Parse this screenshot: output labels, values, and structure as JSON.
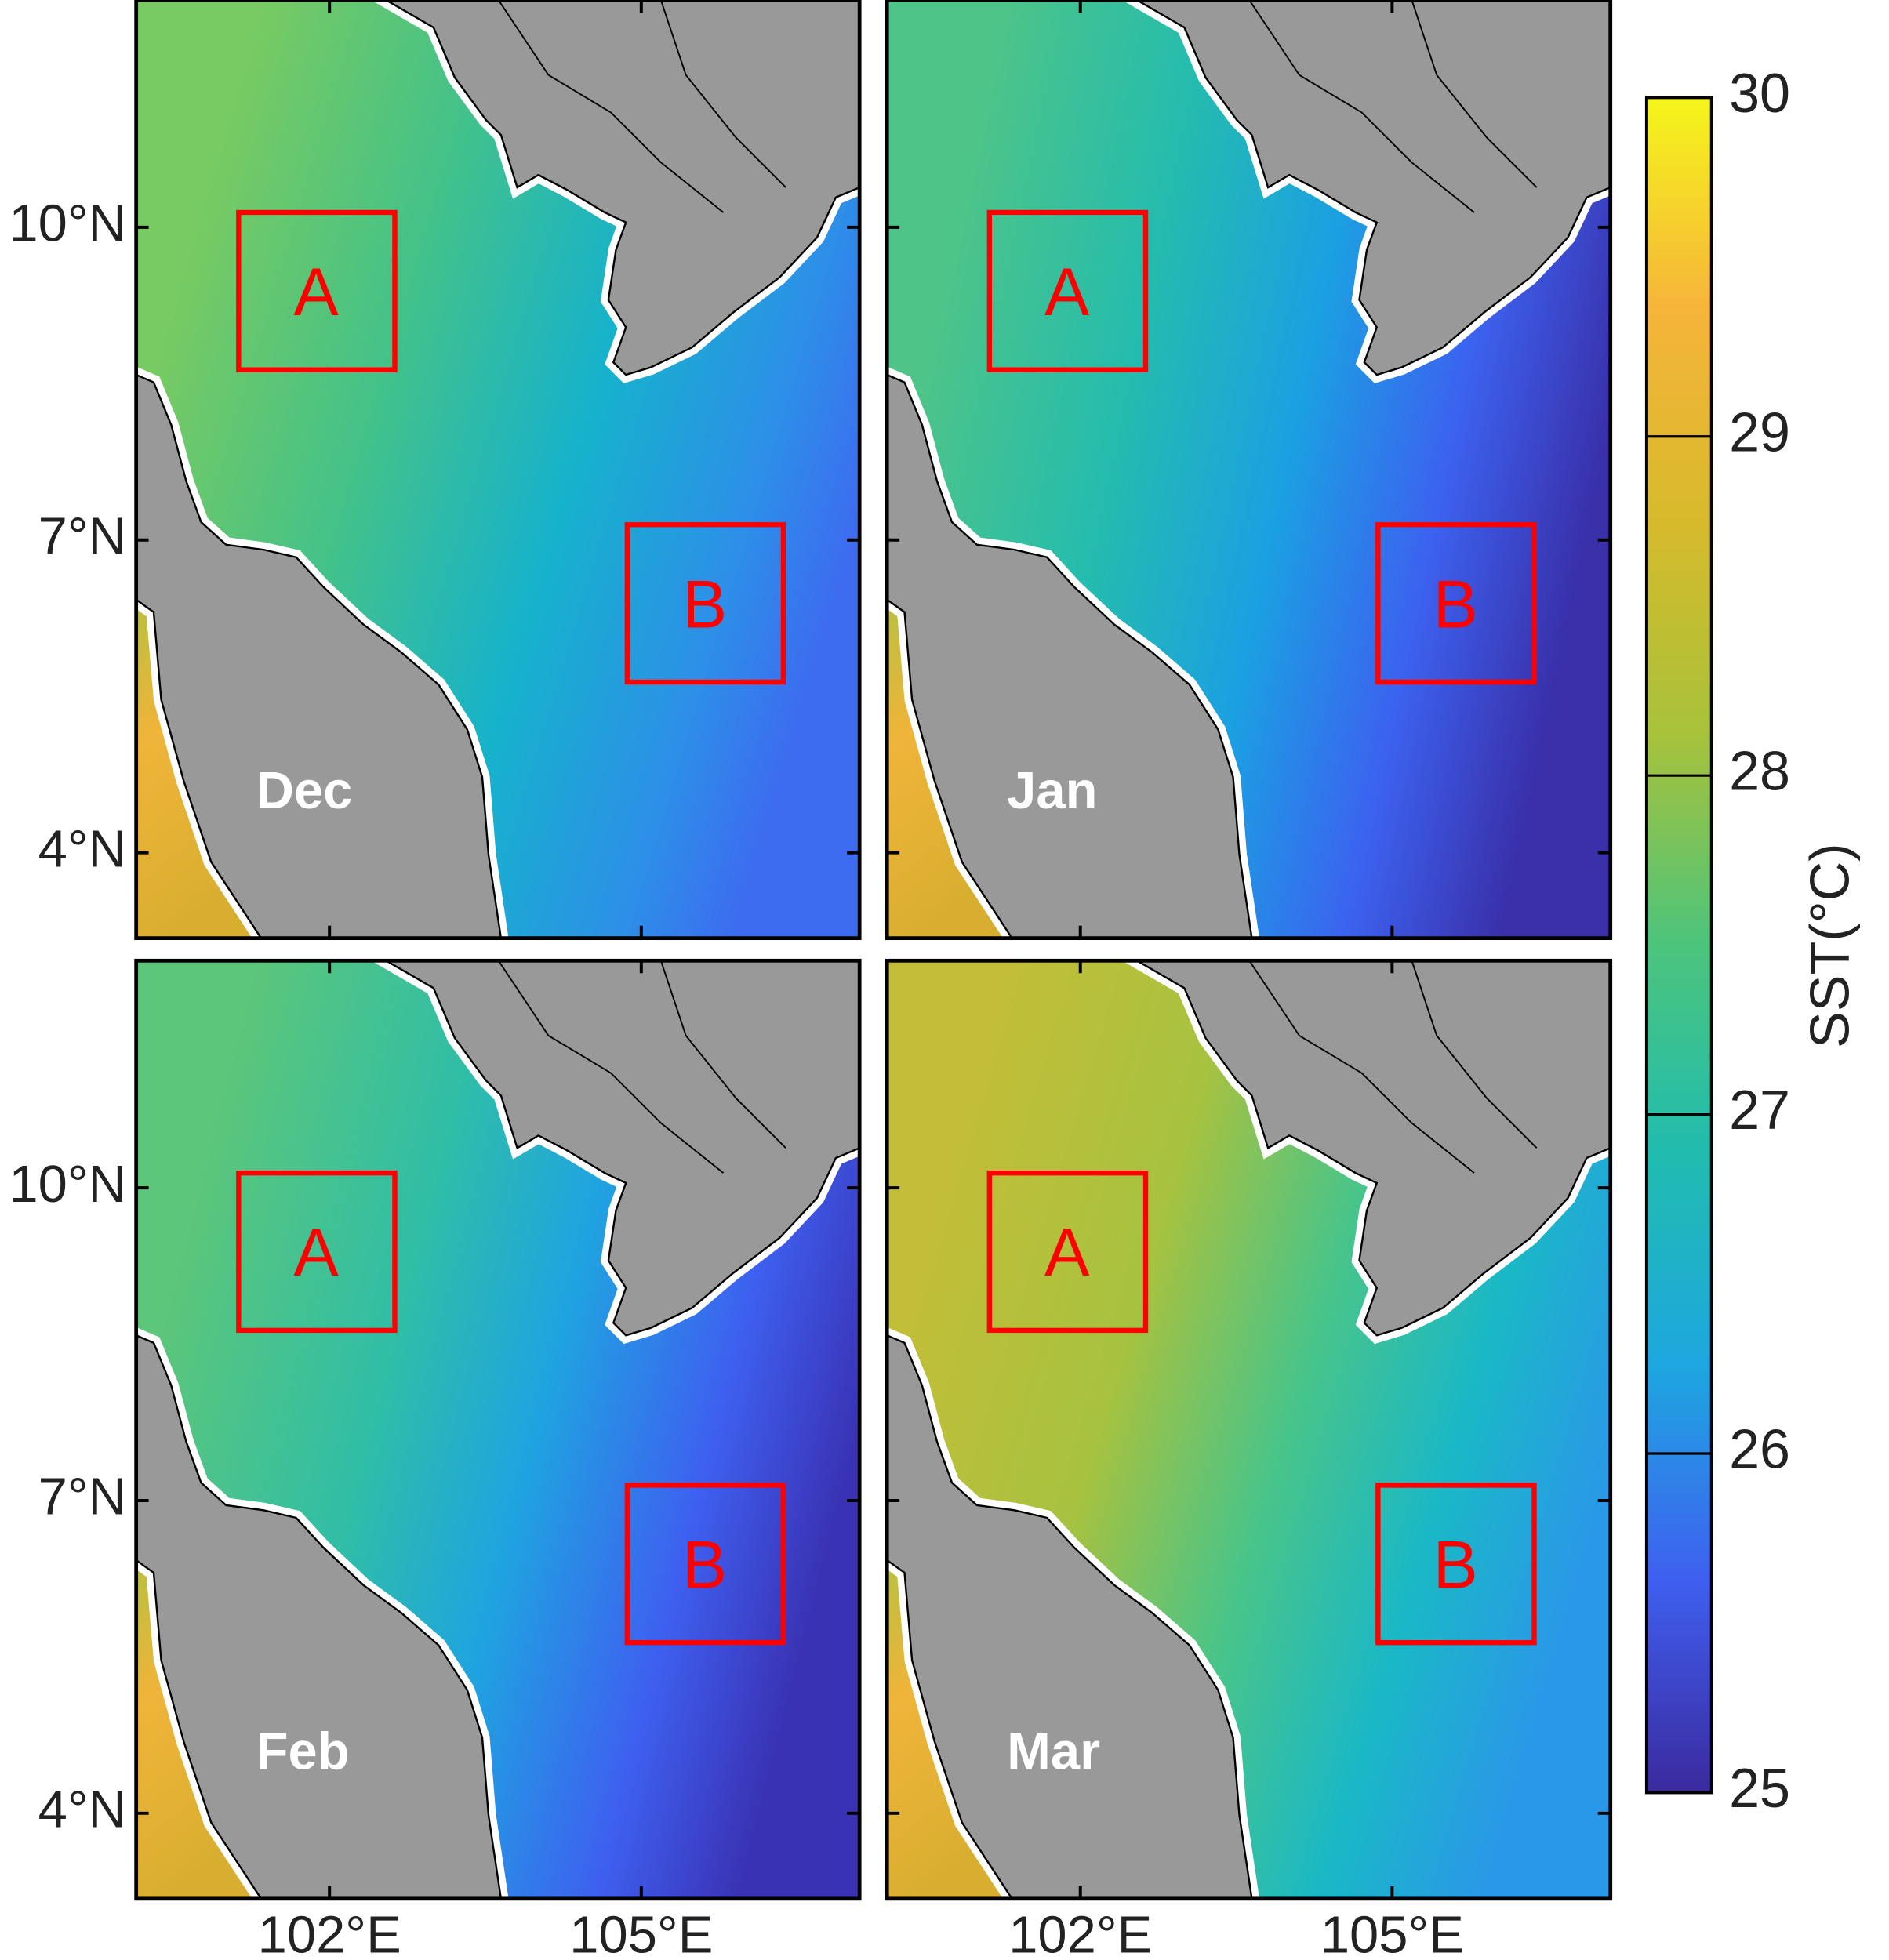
{
  "panels": [
    {
      "label": "Dec"
    },
    {
      "label": "Jan"
    },
    {
      "label": "Feb"
    },
    {
      "label": "Mar"
    }
  ],
  "box_labels": [
    "A",
    "B"
  ],
  "x_axis": {
    "xlim": [
      100.14,
      107.1
    ],
    "xticks": [
      {
        "value": 102,
        "label": "102°E"
      },
      {
        "value": 105,
        "label": "105°E"
      }
    ]
  },
  "y_axis": {
    "ylim": [
      3.18,
      12.18
    ],
    "yticks": [
      {
        "value": 4,
        "label": "4°N"
      },
      {
        "value": 7,
        "label": "7°N"
      },
      {
        "value": 10,
        "label": "10°N"
      }
    ]
  },
  "colorbar": {
    "label": "SST(°C)",
    "lim": [
      25,
      30
    ],
    "ticks": [
      25,
      26,
      27,
      28,
      29,
      30
    ],
    "colormap": [
      "#3b2a9e",
      "#3f5ff0",
      "#1ea6e0",
      "#20bcb0",
      "#4cc47c",
      "#a8c23a",
      "#d7ba2c",
      "#f6b43a",
      "#f5f51c"
    ]
  }
}
